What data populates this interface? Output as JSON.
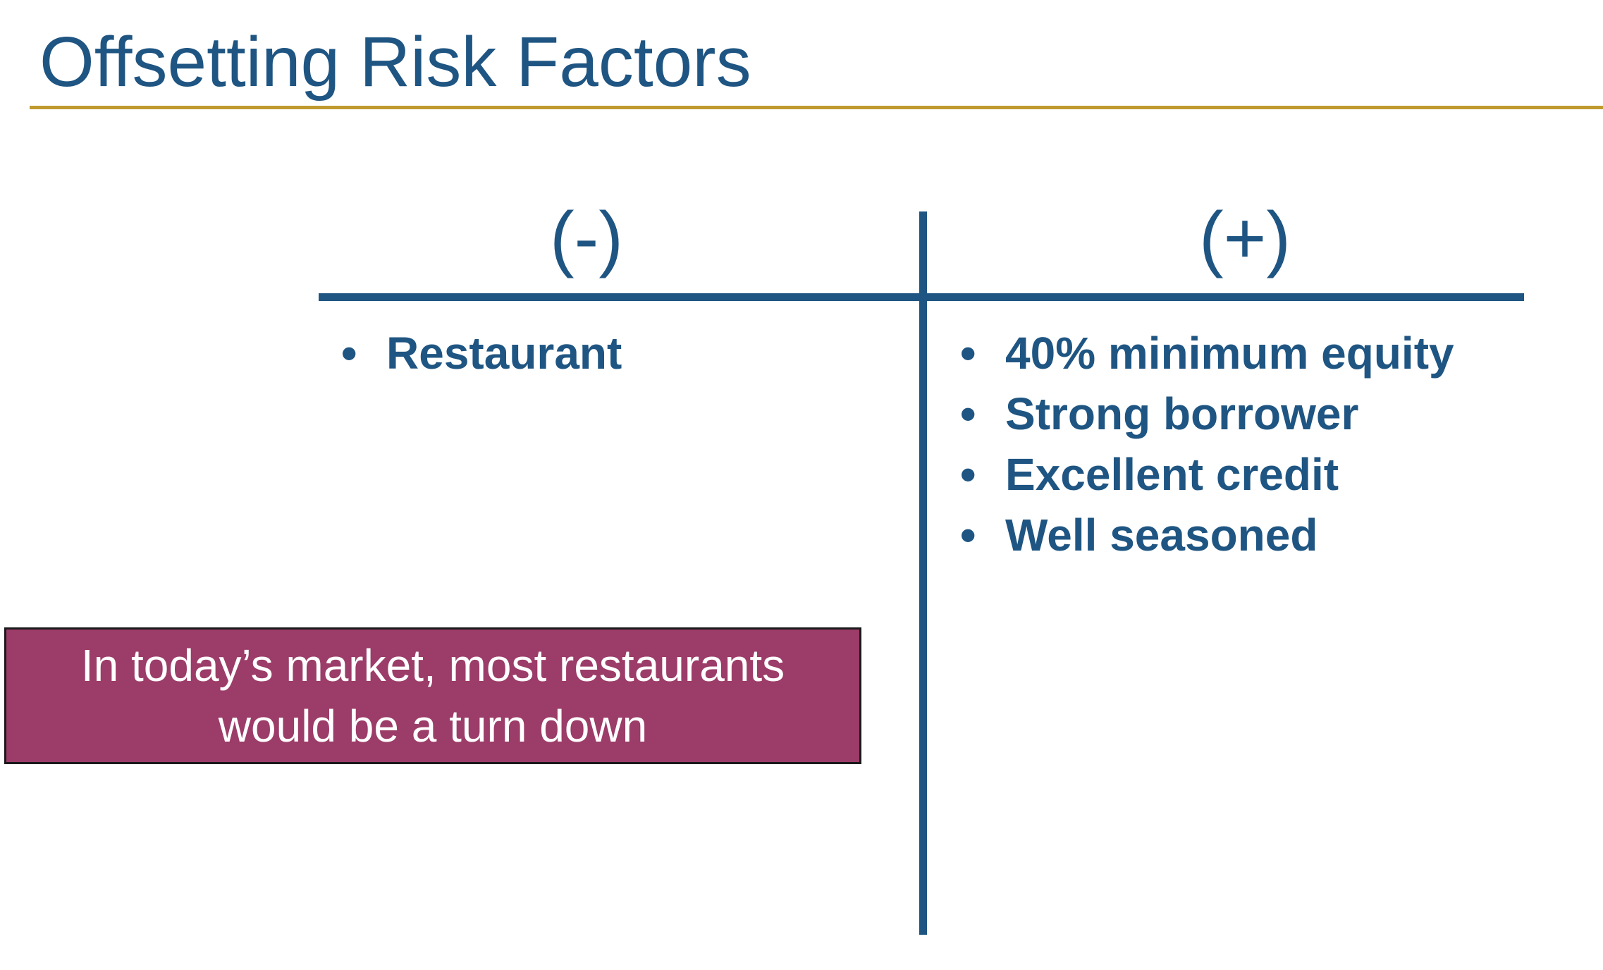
{
  "slide": {
    "title": "Offsetting Risk Factors",
    "negative": {
      "heading": "(-)",
      "items": [
        "Restaurant"
      ]
    },
    "positive": {
      "heading": "(+)",
      "items": [
        "40% minimum equity",
        "Strong borrower",
        "Excellent credit",
        "Well seasoned"
      ]
    },
    "callout": "In today’s market, most restaurants\nwould be a turn down",
    "bullet_glyph": "•"
  },
  "colors": {
    "title": "#1f5582",
    "rule": "#bf9a2f",
    "callout_bg": "#9c3c68",
    "callout_text": "#ffffff"
  }
}
